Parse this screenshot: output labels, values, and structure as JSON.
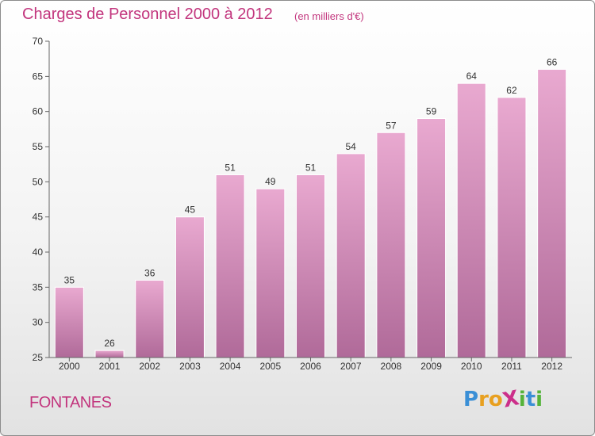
{
  "title": "Charges de Personnel 2000 à 2012",
  "subtitle": "(en milliers d'€)",
  "place": "FONTANES",
  "logo": {
    "text": "ProXiti",
    "letters": [
      {
        "ch": "P",
        "color": "#3a8fd6"
      },
      {
        "ch": "r",
        "color": "#e8a020"
      },
      {
        "ch": "o",
        "color": "#e8a020"
      },
      {
        "ch": "X",
        "color": "#cc2f8a"
      },
      {
        "ch": "i",
        "color": "#55b33a"
      },
      {
        "ch": "t",
        "color": "#3a8fd6"
      },
      {
        "ch": "i",
        "color": "#55b33a"
      }
    ]
  },
  "chart_data": {
    "type": "bar",
    "categories": [
      "2000",
      "2001",
      "2002",
      "2003",
      "2004",
      "2005",
      "2006",
      "2007",
      "2008",
      "2009",
      "2010",
      "2011",
      "2012"
    ],
    "values": [
      35,
      26,
      36,
      45,
      51,
      49,
      51,
      54,
      57,
      59,
      64,
      62,
      66
    ],
    "ylim": [
      25,
      70
    ],
    "yticks": [
      25,
      30,
      35,
      40,
      45,
      50,
      55,
      60,
      65,
      70
    ],
    "grid": false,
    "bar_color_top": "#e9a9d0",
    "bar_color_bottom": "#b06a99",
    "title": "Charges de Personnel 2000 à 2012",
    "subtitle": "(en milliers d'€)"
  }
}
